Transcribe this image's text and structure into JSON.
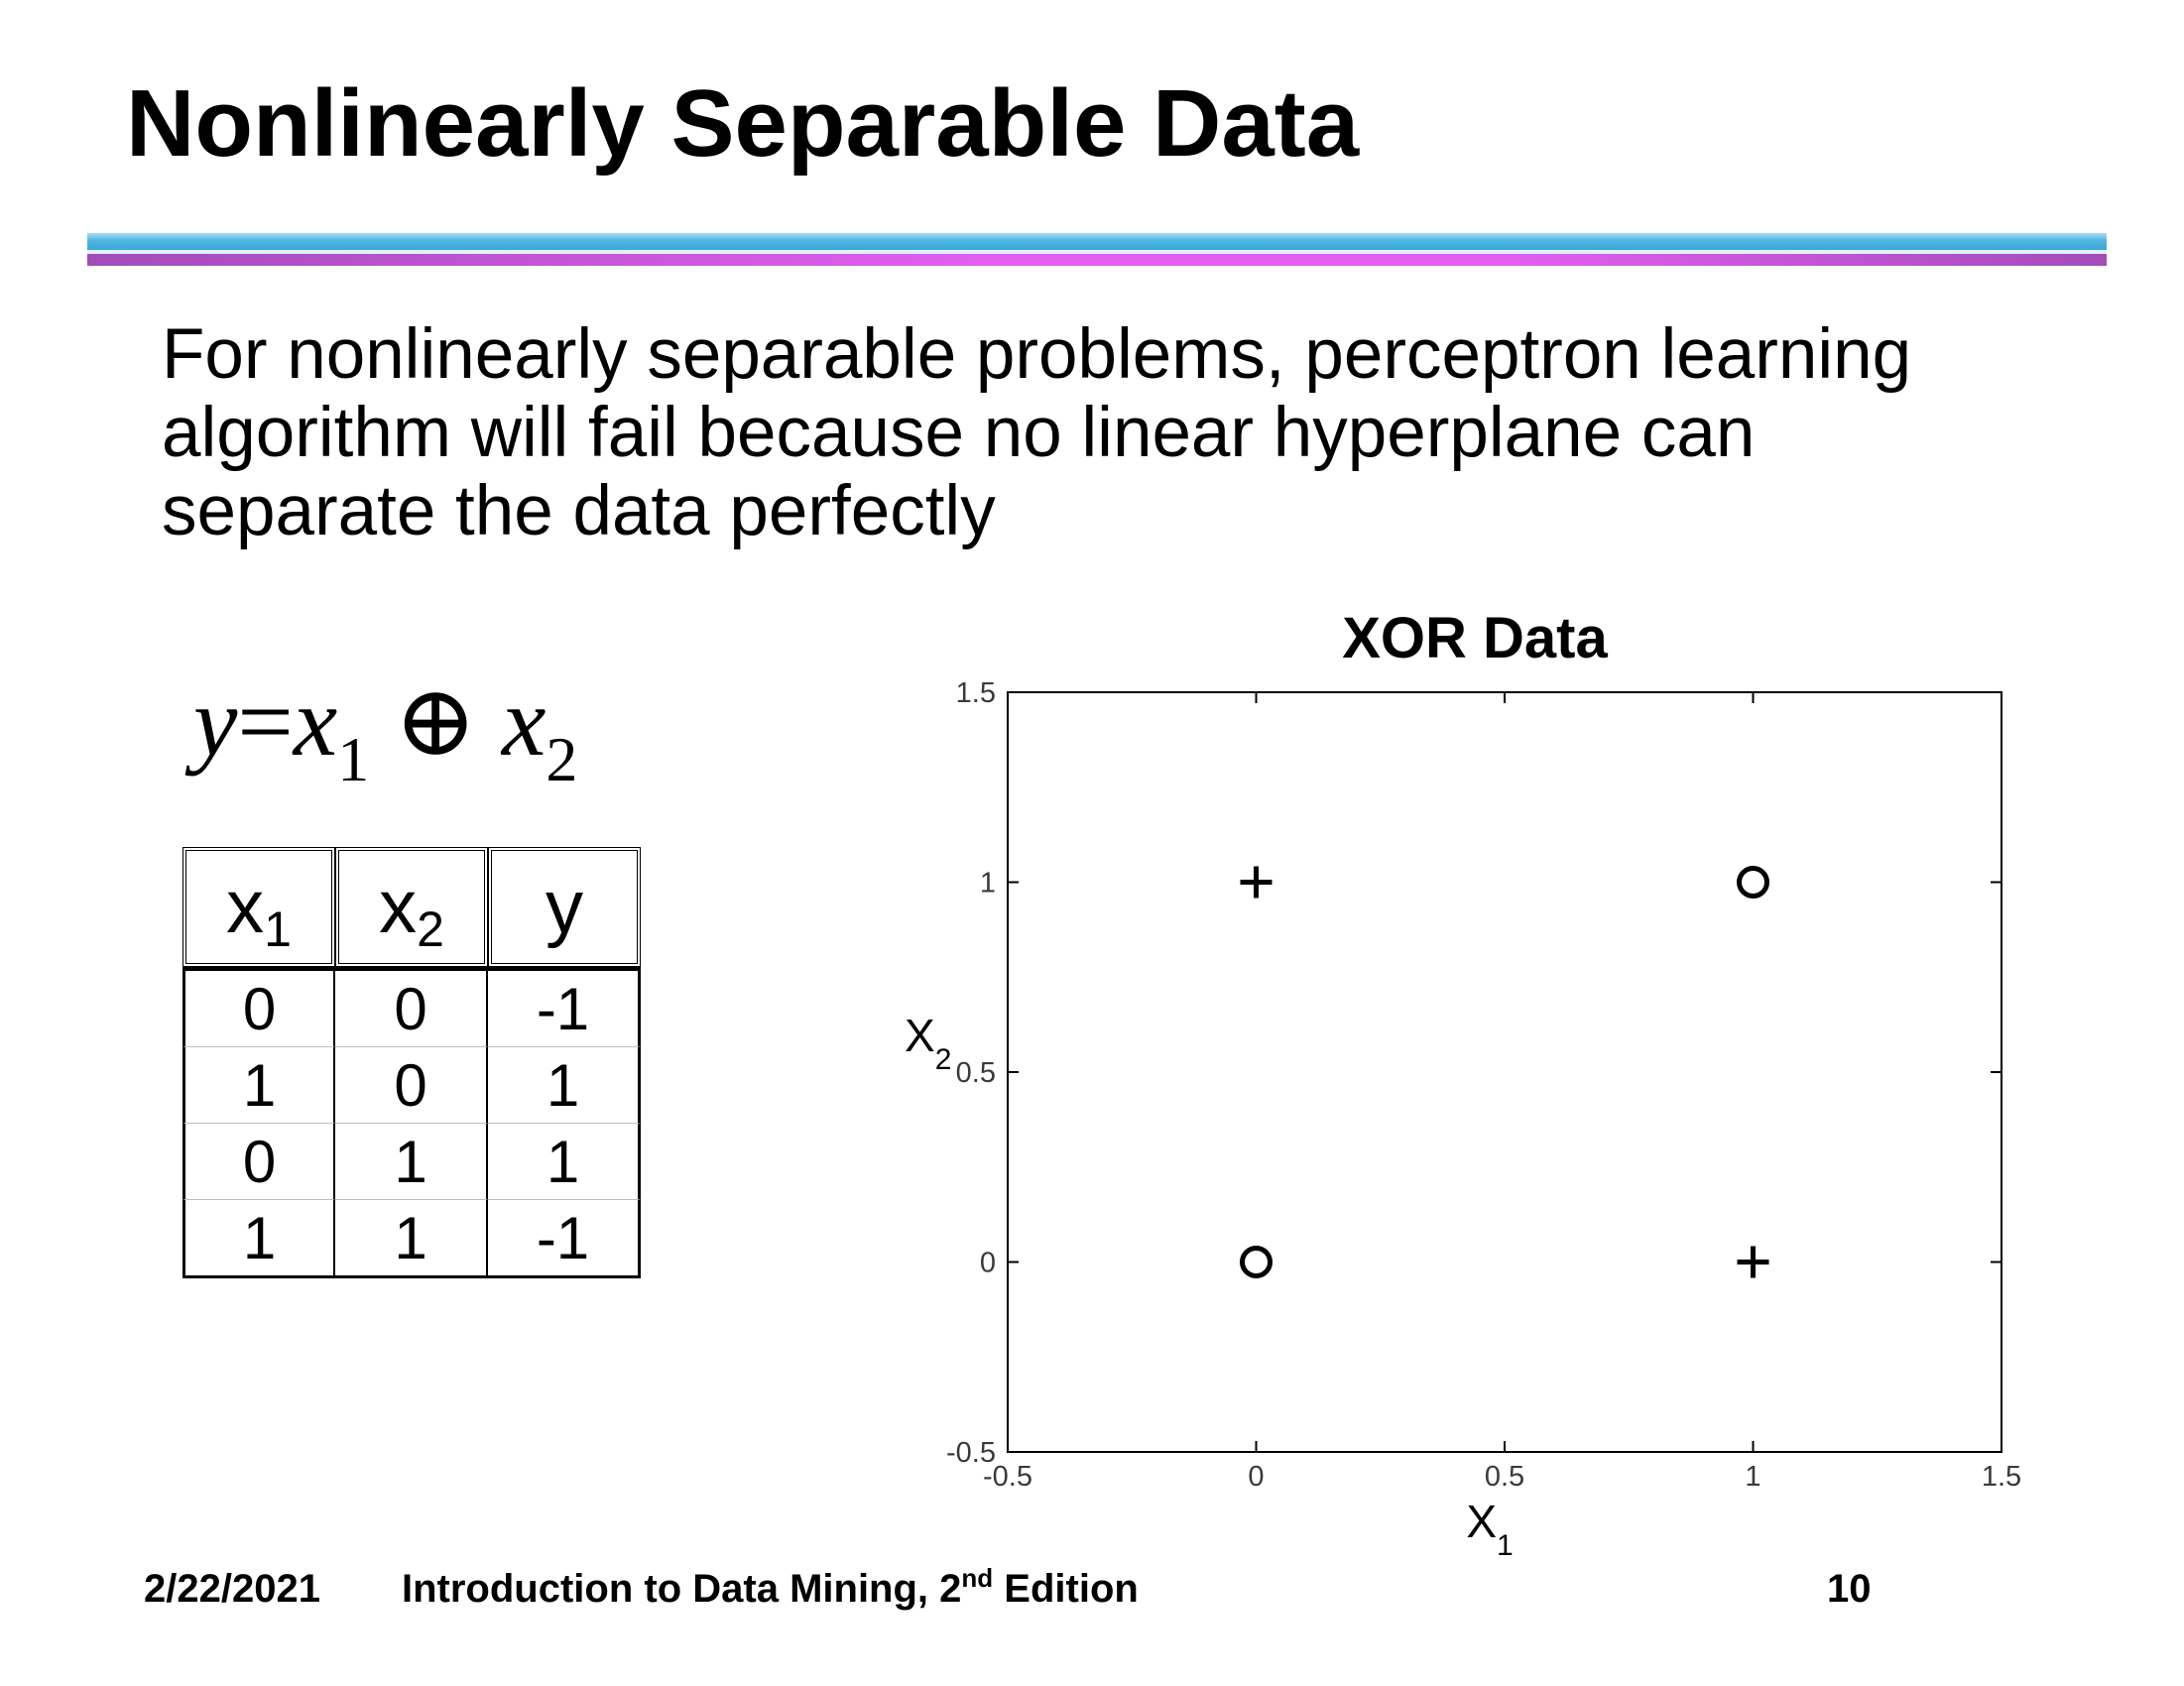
{
  "slide": {
    "title": "Nonlinearly Separable Data",
    "body": "For nonlinearly separable problems, perceptron learning algorithm will fail because no linear hyperplane can separate the data perfectly"
  },
  "formula": {
    "lhs": "y",
    "equals": "=",
    "var1": "x",
    "sub1": "1",
    "operator": "⊕",
    "var2": "x",
    "sub2": "2"
  },
  "truth_table": {
    "headers": [
      {
        "base": "x",
        "sub": "1"
      },
      {
        "base": "x",
        "sub": "2"
      },
      {
        "base": "y",
        "sub": ""
      }
    ],
    "rows": [
      [
        "0",
        "0",
        "-1"
      ],
      [
        "1",
        "0",
        "1"
      ],
      [
        "0",
        "1",
        "1"
      ],
      [
        "1",
        "1",
        "-1"
      ]
    ]
  },
  "chart_data": {
    "type": "scatter",
    "title": "XOR Data",
    "xlabel": "X",
    "xlabel_sub": "1",
    "ylabel": "X",
    "ylabel_sub": "2",
    "xlim": [
      -0.5,
      1.5
    ],
    "ylim": [
      -0.5,
      1.5
    ],
    "xticks": [
      "-0.5",
      "0",
      "0.5",
      "1",
      "1.5"
    ],
    "yticks": [
      "-0.5",
      "0",
      "0.5",
      "1",
      "1.5"
    ],
    "grid": false,
    "legend": "none",
    "series": [
      {
        "marker": "circle",
        "points": [
          {
            "x": 0,
            "y": 0
          },
          {
            "x": 1,
            "y": 1
          }
        ]
      },
      {
        "marker": "plus",
        "points": [
          {
            "x": 1,
            "y": 0
          },
          {
            "x": 0,
            "y": 1
          }
        ]
      }
    ],
    "colors": {
      "marker": "#000000",
      "axis": "#000000",
      "tick_label": "#3a3a3a"
    }
  },
  "footer": {
    "date": "2/22/2021",
    "book_title": "Introduction to Data Mining, 2",
    "edition_sup": "nd",
    "edition_word": " Edition",
    "page_number": "10"
  }
}
